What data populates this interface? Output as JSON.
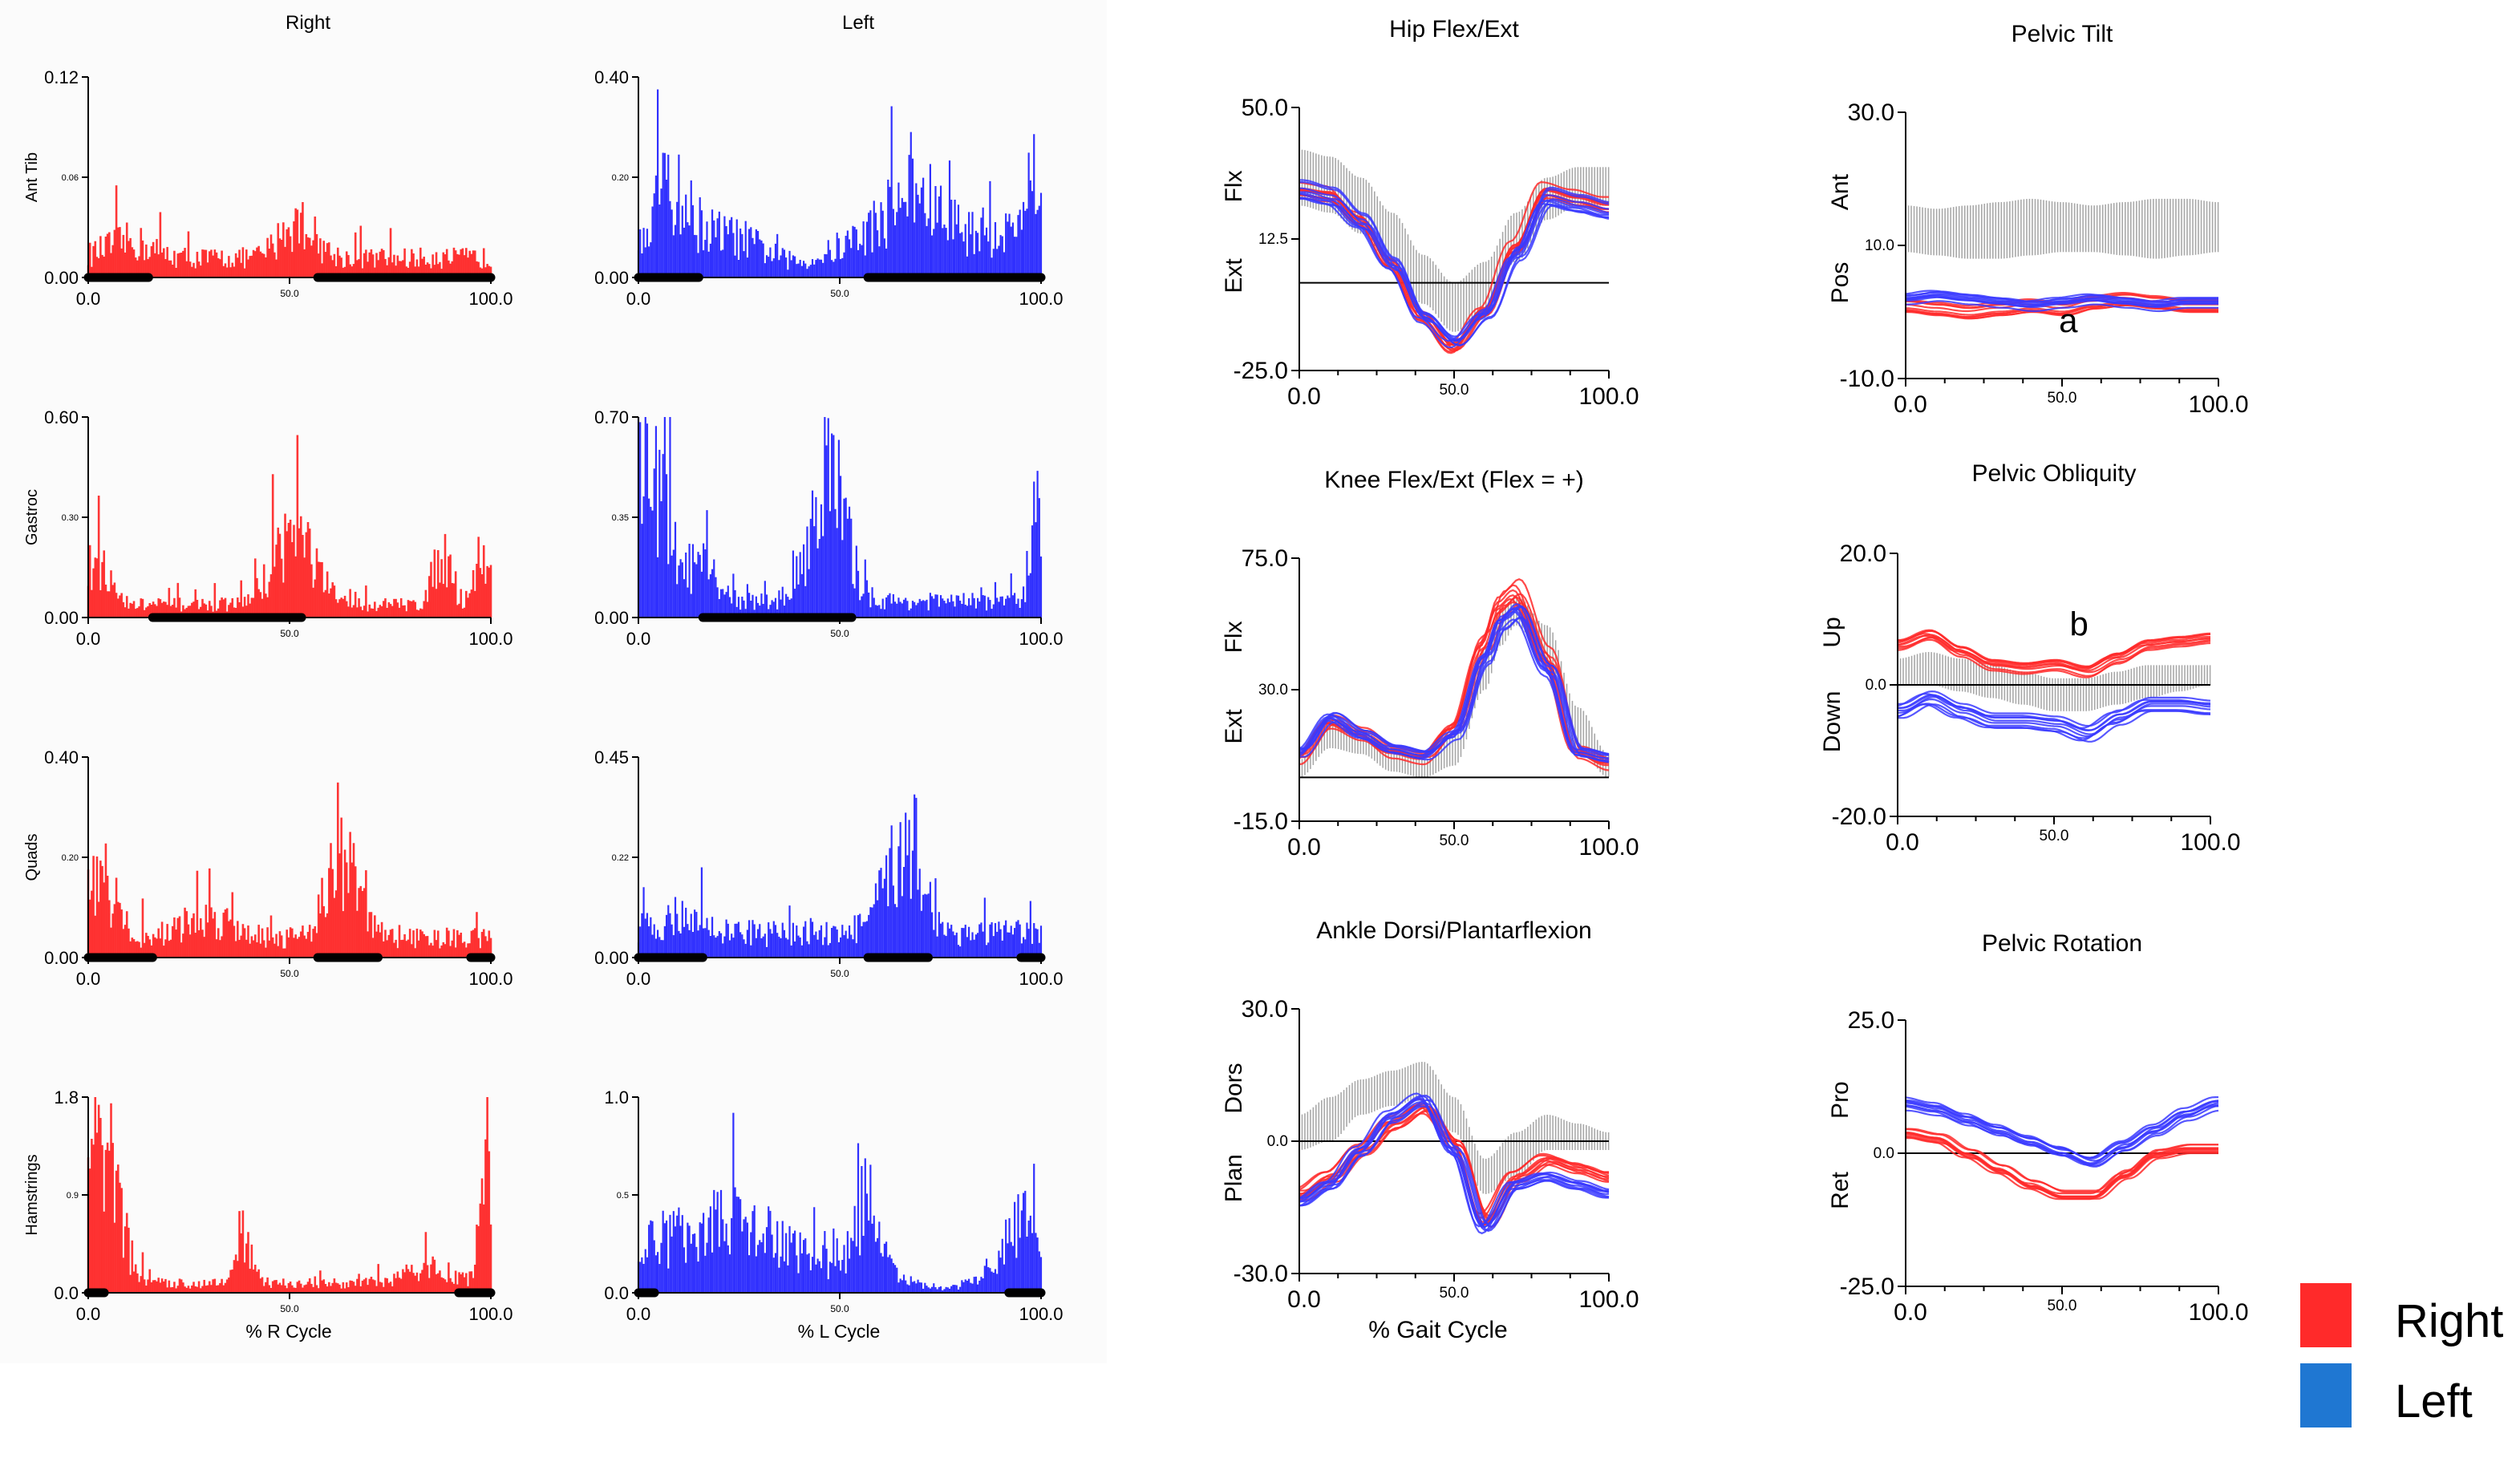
{
  "legend": {
    "items": [
      {
        "label": "Right",
        "color": "#ff2a2a"
      },
      {
        "label": "Left",
        "color": "#1f77d2"
      }
    ]
  },
  "emg": {
    "column_titles": {
      "right": "Right",
      "left": "Left"
    },
    "x_axis_labels": {
      "right": "% R Cycle",
      "left": "% L Cycle"
    },
    "x_ticks": [
      "0.0",
      "50.0",
      "100.0"
    ],
    "colors": {
      "right": "#ff2020",
      "left": "#1a1aff",
      "stance": "#000000"
    },
    "rows": [
      {
        "muscle": "Ant Tib",
        "right_ymax": "0.12",
        "right_ymid": "0.06",
        "left_ymax": "0.40",
        "left_ymid": "0.20",
        "ymin": "0.00"
      },
      {
        "muscle": "Gastroc",
        "right_ymax": "0.60",
        "right_ymid": "0.30",
        "left_ymax": "0.70",
        "left_ymid": "0.35",
        "ymin": "0.00"
      },
      {
        "muscle": "Quads",
        "right_ymax": "0.40",
        "right_ymid": "0.20",
        "left_ymax": "0.45",
        "left_ymid": "0.22",
        "ymin": "0.00"
      },
      {
        "muscle": "Hamstrings",
        "right_ymax": "1.8",
        "right_ymid": "0.9",
        "left_ymax": "1.0",
        "left_ymid": "0.5",
        "ymin": "0.0"
      }
    ]
  },
  "chart_data": [
    {
      "type": "line",
      "title": "Hip Flex/Ext",
      "xlabel": "",
      "xlim": [
        0,
        100
      ],
      "x_ticks": [
        "0.0",
        "50.0",
        "100.0"
      ],
      "ylim": [
        -25,
        50
      ],
      "y_ticks": [
        "-25.0",
        "12.5",
        "50.0"
      ],
      "y_upper_label": "Flx",
      "y_lower_label": "Ext",
      "zero_line": 0,
      "x": [
        0,
        10,
        20,
        30,
        40,
        50,
        60,
        70,
        80,
        90,
        100
      ],
      "normal_band_low": [
        22,
        20,
        14,
        5,
        -6,
        -14,
        -8,
        6,
        18,
        22,
        22
      ],
      "normal_band_high": [
        38,
        36,
        30,
        20,
        8,
        0,
        6,
        20,
        30,
        33,
        33
      ],
      "series": [
        {
          "name": "Right",
          "color": "#ff2a2a",
          "values": [
            26,
            25,
            18,
            6,
            -9,
            -18,
            -8,
            10,
            26,
            24,
            22
          ]
        },
        {
          "name": "Left",
          "color": "#3a3aff",
          "values": [
            26,
            24,
            17,
            5,
            -10,
            -17,
            -9,
            8,
            24,
            22,
            20
          ]
        }
      ]
    },
    {
      "type": "line",
      "title": "Knee Flex/Ext (Flex = +)",
      "xlabel": "",
      "xlim": [
        0,
        100
      ],
      "x_ticks": [
        "0.0",
        "50.0",
        "100.0"
      ],
      "ylim": [
        -15,
        75
      ],
      "y_ticks": [
        "-15.0",
        "30.0",
        "75.0"
      ],
      "y_upper_label": "Flx",
      "y_lower_label": "Ext",
      "zero_line": 0,
      "x": [
        0,
        10,
        20,
        30,
        40,
        50,
        60,
        65,
        70,
        80,
        90,
        100
      ],
      "normal_band_low": [
        0,
        10,
        8,
        2,
        0,
        4,
        30,
        45,
        52,
        40,
        10,
        0
      ],
      "normal_band_high": [
        6,
        20,
        16,
        10,
        6,
        14,
        44,
        58,
        62,
        52,
        24,
        8
      ],
      "series": [
        {
          "name": "Right",
          "color": "#ff2a2a",
          "values": [
            6,
            18,
            14,
            8,
            6,
            16,
            45,
            58,
            62,
            40,
            8,
            4
          ]
        },
        {
          "name": "Left",
          "color": "#3a3aff",
          "values": [
            8,
            20,
            14,
            9,
            7,
            14,
            40,
            52,
            56,
            36,
            8,
            6
          ]
        }
      ]
    },
    {
      "type": "line",
      "title": "Ankle Dorsi/Plantarflexion",
      "xlabel": "% Gait Cycle",
      "xlim": [
        0,
        100
      ],
      "x_ticks": [
        "0.0",
        "50.0",
        "100.0"
      ],
      "ylim": [
        -30,
        30
      ],
      "y_ticks": [
        "-30.0",
        "0.0",
        "30.0"
      ],
      "y_upper_label": "Dors",
      "y_lower_label": "Plan",
      "zero_line": 0,
      "x": [
        0,
        10,
        20,
        30,
        40,
        50,
        60,
        70,
        80,
        90,
        100
      ],
      "normal_band_low": [
        -2,
        0,
        6,
        8,
        10,
        2,
        -12,
        -8,
        -2,
        -2,
        -2
      ],
      "normal_band_high": [
        6,
        10,
        14,
        16,
        18,
        10,
        -4,
        2,
        6,
        4,
        2
      ],
      "series": [
        {
          "name": "Right",
          "color": "#ff2a2a",
          "values": [
            -12,
            -8,
            -2,
            4,
            8,
            0,
            -18,
            -8,
            -4,
            -6,
            -8
          ]
        },
        {
          "name": "Left",
          "color": "#3a3aff",
          "values": [
            -14,
            -10,
            -2,
            6,
            10,
            -2,
            -20,
            -10,
            -8,
            -10,
            -12
          ]
        }
      ]
    },
    {
      "type": "line",
      "title": "Pelvic Tilt",
      "xlabel": "",
      "xlim": [
        0,
        100
      ],
      "x_ticks": [
        "0.0",
        "50.0",
        "100.0"
      ],
      "ylim": [
        -10,
        30
      ],
      "y_ticks": [
        "-10.0",
        "10.0",
        "30.0"
      ],
      "y_upper_label": "Ant",
      "y_lower_label": "Pos",
      "zero_line": null,
      "annotation": "a",
      "annotation_x": 52,
      "annotation_y": -3,
      "x": [
        0,
        10,
        20,
        30,
        40,
        50,
        60,
        70,
        80,
        90,
        100
      ],
      "normal_band_low": [
        9,
        8.5,
        8,
        8,
        8.5,
        9,
        9,
        8.5,
        8,
        8.5,
        9
      ],
      "normal_band_high": [
        16,
        15.5,
        16,
        16.5,
        17,
        16.5,
        16,
        16.5,
        17,
        17,
        16.5
      ],
      "series": [
        {
          "name": "Right",
          "color": "#ff2a2a",
          "values": [
            1,
            0.5,
            0,
            0.5,
            1,
            0.5,
            1.5,
            2,
            1.5,
            1,
            1
          ]
        },
        {
          "name": "Left",
          "color": "#3a3aff",
          "values": [
            2,
            2.5,
            2,
            1.5,
            1,
            1.5,
            2,
            1.5,
            1,
            1.5,
            1.5
          ]
        }
      ]
    },
    {
      "type": "line",
      "title": "Pelvic Obliquity",
      "xlabel": "",
      "xlim": [
        0,
        100
      ],
      "x_ticks": [
        "0.0",
        "50.0",
        "100.0"
      ],
      "ylim": [
        -20,
        20
      ],
      "y_ticks": [
        "-20.0",
        "0.0",
        "20.0"
      ],
      "y_upper_label": "Up",
      "y_lower_label": "Down",
      "zero_line": 0,
      "annotation": "b",
      "annotation_x": 58,
      "annotation_y": 7.5,
      "x": [
        0,
        10,
        20,
        30,
        40,
        50,
        60,
        70,
        80,
        90,
        100
      ],
      "normal_band_low": [
        0,
        0,
        -1,
        -2,
        -3,
        -4,
        -4,
        -3,
        -2,
        -1,
        0
      ],
      "normal_band_high": [
        4,
        5,
        4,
        3,
        2,
        1,
        1,
        2,
        3,
        3,
        3
      ],
      "series": [
        {
          "name": "Right",
          "color": "#ff2a2a",
          "values": [
            6,
            7.5,
            5,
            3,
            2.5,
            3,
            2,
            4,
            6,
            6.5,
            7
          ]
        },
        {
          "name": "Left",
          "color": "#3a3aff",
          "values": [
            -4,
            -2,
            -4,
            -5.5,
            -5.5,
            -6,
            -7.5,
            -5,
            -3,
            -3,
            -3.5
          ]
        }
      ]
    },
    {
      "type": "line",
      "title": "Pelvic Rotation",
      "xlabel": "",
      "xlim": [
        0,
        100
      ],
      "x_ticks": [
        "0.0",
        "50.0",
        "100.0"
      ],
      "ylim": [
        -25,
        25
      ],
      "y_ticks": [
        "-25.0",
        "0.0",
        "25.0"
      ],
      "y_upper_label": "Pro",
      "y_lower_label": "Ret",
      "zero_line": 0,
      "x": [
        0,
        10,
        20,
        30,
        40,
        50,
        60,
        70,
        80,
        90,
        100
      ],
      "normal_band_low": null,
      "normal_band_high": null,
      "series": [
        {
          "name": "Right",
          "color": "#ff2a2a",
          "values": [
            4,
            3,
            0,
            -3,
            -6,
            -8,
            -8,
            -4,
            0,
            1,
            1
          ]
        },
        {
          "name": "Left",
          "color": "#3a3aff",
          "values": [
            9,
            8,
            6,
            4,
            2,
            0,
            -2,
            1,
            4,
            7,
            9
          ]
        }
      ]
    }
  ]
}
